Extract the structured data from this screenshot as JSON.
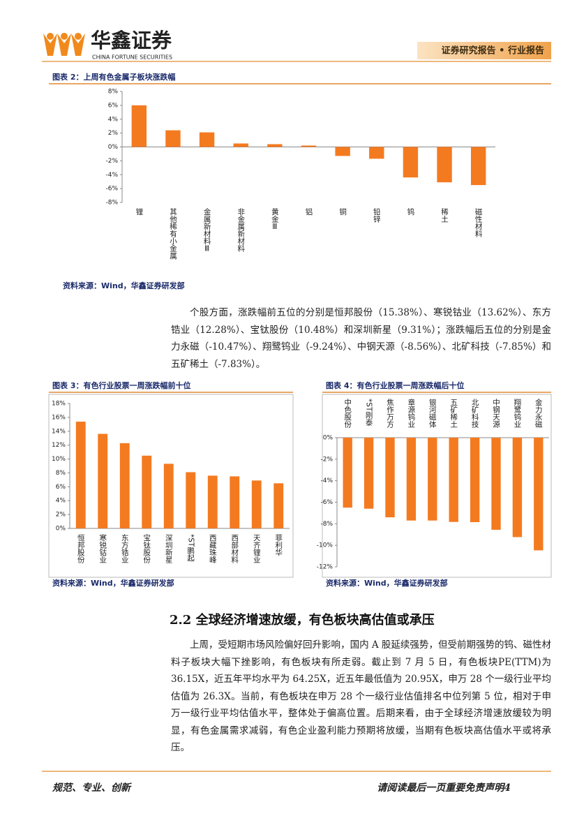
{
  "header": {
    "brand": "华鑫证券",
    "brand_en": "CHINA FORTUNE SECURITIES",
    "banner": "证券研究报告 • 行业报告"
  },
  "chart_data": [
    {
      "type": "bar",
      "title": "图表 2：上周有色金属子板块涨跌幅",
      "source": "资料来源：Wind，华鑫证券研发部",
      "categories": [
        "锂",
        "其他稀有小金属",
        "金属新材料Ⅲ",
        "非金属新材料",
        "黄金Ⅲ",
        "铝",
        "铜",
        "铅锌",
        "钨",
        "稀土",
        "磁性材料"
      ],
      "values": [
        6.0,
        2.4,
        2.1,
        0.5,
        0.4,
        0.2,
        -1.3,
        -1.7,
        -4.4,
        -5.1,
        -5.5
      ],
      "color": "#f47a20",
      "ylim": [
        -8,
        8
      ],
      "yticks": [
        {
          "value": -8,
          "label": "-8%"
        },
        {
          "value": -6,
          "label": "-6%"
        },
        {
          "value": -4,
          "label": "-4%"
        },
        {
          "value": -2,
          "label": "-2%"
        },
        {
          "value": 0,
          "label": "0%"
        },
        {
          "value": 2,
          "label": "2%"
        },
        {
          "value": 4,
          "label": "4%"
        },
        {
          "value": 6,
          "label": "6%"
        },
        {
          "value": 8,
          "label": "8%"
        }
      ],
      "grid": false
    },
    {
      "type": "bar",
      "title": "图表 3：有色行业股票一周涨跌幅前十位",
      "source": "资料来源：Wind，华鑫证券研发部",
      "categories": [
        "恒邦股份",
        "寒锐钴业",
        "东方锆业",
        "宝钛股份",
        "深圳新星",
        "*ST鹏起",
        "西藏珠峰",
        "西部材料",
        "天齐锂业",
        "菲利华"
      ],
      "values": [
        15.38,
        13.62,
        12.28,
        10.48,
        9.31,
        8.1,
        7.6,
        7.5,
        6.9,
        6.5
      ],
      "color": "#f47a20",
      "ylim": [
        0,
        18
      ],
      "yticks": [
        {
          "value": 0,
          "label": "0%"
        },
        {
          "value": 2,
          "label": "2%"
        },
        {
          "value": 4,
          "label": "4%"
        },
        {
          "value": 6,
          "label": "6%"
        },
        {
          "value": 8,
          "label": "8%"
        },
        {
          "value": 10,
          "label": "10%"
        },
        {
          "value": 12,
          "label": "12%"
        },
        {
          "value": 14,
          "label": "14%"
        },
        {
          "value": 16,
          "label": "16%"
        },
        {
          "value": 18,
          "label": "18%"
        }
      ],
      "grid": false
    },
    {
      "type": "bar",
      "title": "图表 4：有色行业股票一周涨跌幅后十位",
      "source": "资料来源：Wind，华鑫证券研发部",
      "categories": [
        "中色股份",
        "*ST刚泰",
        "焦作万方",
        "章源钨业",
        "银河磁体",
        "五矿稀土",
        "北矿科技",
        "中钢天源",
        "翔鹭钨业",
        "金力永磁"
      ],
      "values": [
        -6.5,
        -6.6,
        -7.4,
        -7.7,
        -7.7,
        -7.83,
        -7.85,
        -8.56,
        -9.24,
        -10.47
      ],
      "color": "#f47a20",
      "ylim": [
        -12,
        0
      ],
      "yticks": [
        {
          "value": -12,
          "label": "-12%"
        },
        {
          "value": -10,
          "label": "-10%"
        },
        {
          "value": -8,
          "label": "-8%"
        },
        {
          "value": -6,
          "label": "-6%"
        },
        {
          "value": -4,
          "label": "-4%"
        },
        {
          "value": -2,
          "label": "-2%"
        },
        {
          "value": 0,
          "label": "0%"
        }
      ],
      "grid": false
    }
  ],
  "paragraphs": [
    "个股方面，涨跌幅前五位的分别是恒邦股份（15.38%）、寒锐钴业（13.62%）、东方锆业（12.28%）、宝钛股份（10.48%）和深圳新星（9.31%）；涨跌幅后五位的分别是金力永磁（-10.47%）、翔鹭钨业（-9.24%）、中钢天源（-8.56%）、北矿科技（-7.85%）和五矿稀土（-7.83%）。",
    "上周，受短期市场风险偏好回升影响，国内 A 股延续强势，但受前期强势的钨、磁性材料子板块大幅下挫影响，有色板块有所走弱。截止到 7 月 5 日，有色板块PE(TTM)为 36.15X，近五年平均水平为 64.25X，近五年最低值为 20.95X，申万 28 个一级行业平均估值为 26.3X。当前，有色板块在申万 28 个一级行业估值排名中位列第 5 位，相对于申万一级行业平均估值水平，整体处于偏高位置。后期来看，由于全球经济增速放缓较为明显，有色金属需求减弱，有色企业盈利能力预期将放缓，当期有色板块高估值水平或将承压。"
  ],
  "section_heading": "2.2 全球经济增速放缓，有色板块高估值或承压",
  "footer": {
    "left": "规范、专业、创新",
    "right": "请阅读最后一页重要免责声明4"
  }
}
